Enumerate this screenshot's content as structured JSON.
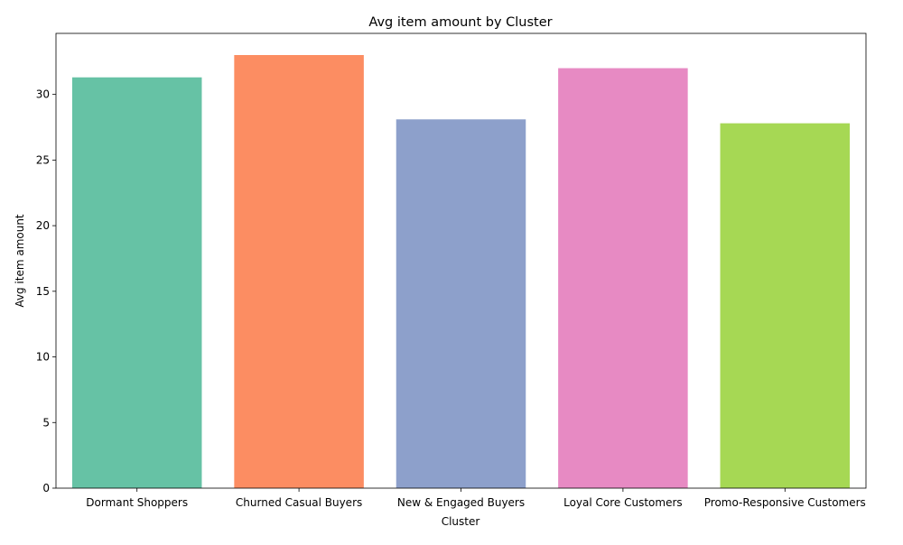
{
  "chart_data": {
    "type": "bar",
    "title": "Avg item amount by Cluster",
    "xlabel": "Cluster",
    "ylabel": "Avg item amount",
    "categories": [
      "Dormant Shoppers",
      "Churned Casual Buyers",
      "New & Engaged Buyers",
      "Loyal Core Customers",
      "Promo-Responsive Customers"
    ],
    "values": [
      31.3,
      33.0,
      28.1,
      32.0,
      27.8
    ],
    "colors": [
      "#66c2a5",
      "#fc8d62",
      "#8da0cb",
      "#e78ac3",
      "#a6d854"
    ],
    "ylim": [
      0,
      34.65
    ],
    "yticks": [
      0,
      5,
      10,
      15,
      20,
      25,
      30
    ],
    "grid": false,
    "legend": "none"
  }
}
